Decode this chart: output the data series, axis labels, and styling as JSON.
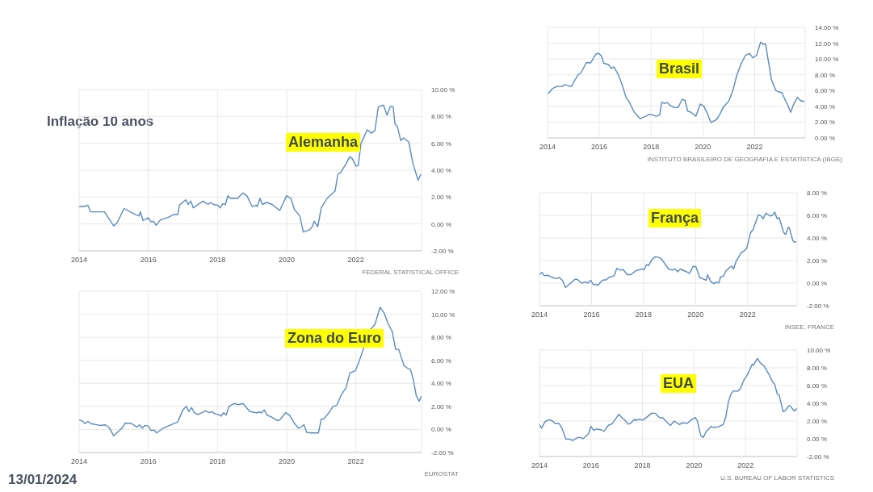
{
  "chart_data": [
    {
      "type": "other",
      "title": "Inflação 10 anos",
      "annotations": [
        "13/01/2024"
      ]
    },
    {
      "type": "line",
      "title": "Alemanha",
      "annotations": [
        "FEDERAL STATISTICAL OFFICE"
      ],
      "color": "#5a8bc0",
      "grid": true,
      "xlim": [
        2014,
        2023.9
      ],
      "xticks": [
        2014,
        2016,
        2018,
        2020,
        2022
      ],
      "ylim": [
        -2,
        10
      ],
      "yticks": [
        {
          "value": -2,
          "label": "-2.00 %"
        },
        {
          "value": 0,
          "label": "0.00 %"
        },
        {
          "value": 2,
          "label": "2.00 %"
        },
        {
          "value": 4,
          "label": "4.00 %"
        },
        {
          "value": 6,
          "label": "6.00 %"
        },
        {
          "value": 8,
          "label": "8.00 %"
        },
        {
          "value": 10,
          "label": "10.00 %"
        }
      ],
      "x": [
        2014.0,
        2014.15,
        2014.25,
        2014.33,
        2014.73,
        2015.0,
        2015.1,
        2015.3,
        2015.58,
        2015.73,
        2015.77,
        2015.85,
        2016.0,
        2016.08,
        2016.15,
        2016.23,
        2016.35,
        2016.58,
        2016.73,
        2016.85,
        2016.9,
        2017.08,
        2017.15,
        2017.23,
        2017.3,
        2017.58,
        2017.73,
        2017.8,
        2017.88,
        2018.0,
        2018.08,
        2018.15,
        2018.23,
        2018.3,
        2018.38,
        2018.58,
        2018.73,
        2018.85,
        2019.0,
        2019.12,
        2019.15,
        2019.23,
        2019.3,
        2019.42,
        2019.58,
        2019.8,
        2020.0,
        2020.12,
        2020.23,
        2020.38,
        2020.48,
        2020.65,
        2020.73,
        2020.8,
        2020.9,
        2021.0,
        2021.17,
        2021.4,
        2021.48,
        2021.55,
        2021.7,
        2021.82,
        2021.9,
        2022.0,
        2022.07,
        2022.15,
        2022.33,
        2022.45,
        2022.55,
        2022.65,
        2022.8,
        2022.9,
        2023.0,
        2023.08,
        2023.13,
        2023.2,
        2023.3,
        2023.38,
        2023.53,
        2023.65,
        2023.8,
        2023.88
      ],
      "values": [
        1.3,
        1.3,
        1.4,
        0.9,
        0.9,
        -0.15,
        0.1,
        1.15,
        0.75,
        0.6,
        0.9,
        0.25,
        0.45,
        0.15,
        0.2,
        -0.1,
        0.3,
        0.5,
        0.7,
        0.7,
        1.4,
        1.8,
        1.45,
        1.7,
        1.2,
        1.7,
        1.45,
        1.6,
        1.45,
        1.4,
        1.2,
        1.5,
        1.45,
        2.1,
        1.9,
        1.9,
        2.3,
        2.1,
        1.3,
        1.4,
        1.3,
        1.9,
        1.45,
        1.6,
        1.45,
        1.0,
        2.1,
        1.9,
        1.05,
        0.6,
        -0.6,
        -0.45,
        -0.25,
        0.2,
        -0.2,
        1.2,
        1.9,
        2.45,
        3.7,
        3.8,
        4.4,
        5.0,
        4.85,
        4.3,
        4.35,
        6.0,
        7.0,
        6.75,
        6.95,
        8.7,
        8.85,
        8.1,
        8.75,
        8.7,
        7.45,
        7.25,
        6.2,
        6.4,
        6.1,
        4.5,
        3.25,
        3.7
      ]
    },
    {
      "type": "line",
      "title": "Brasil",
      "annotations": [
        "INSTITUTO BRASILEIRO DE GEOGRAFIA E ESTATÍSTICA (IBGE)"
      ],
      "color": "#5a8bc0",
      "grid": true,
      "xlim": [
        2014,
        2023.95
      ],
      "xticks": [
        2014,
        2016,
        2018,
        2020,
        2022
      ],
      "ylim": [
        0,
        14
      ],
      "yticks": [
        {
          "value": 0,
          "label": "0.00 %"
        },
        {
          "value": 2,
          "label": "2.00 %"
        },
        {
          "value": 4,
          "label": "4.00 %"
        },
        {
          "value": 6,
          "label": "6.00 %"
        },
        {
          "value": 8,
          "label": "8.00 %"
        },
        {
          "value": 10,
          "label": "10.00 %"
        },
        {
          "value": 12,
          "label": "12.00 %"
        },
        {
          "value": 14,
          "label": "14.00 %"
        }
      ],
      "x": [
        2014.0,
        2014.07,
        2014.18,
        2014.39,
        2014.55,
        2014.66,
        2014.92,
        2015.03,
        2015.19,
        2015.29,
        2015.5,
        2015.66,
        2015.87,
        2015.98,
        2016.08,
        2016.17,
        2016.35,
        2016.46,
        2016.56,
        2016.72,
        2016.88,
        2017.04,
        2017.14,
        2017.35,
        2017.57,
        2017.83,
        2017.94,
        2018.1,
        2018.2,
        2018.33,
        2018.41,
        2018.52,
        2018.62,
        2018.72,
        2018.89,
        2019.04,
        2019.2,
        2019.31,
        2019.41,
        2019.54,
        2019.73,
        2019.9,
        2020.04,
        2020.18,
        2020.31,
        2020.52,
        2020.63,
        2020.79,
        2021.0,
        2021.16,
        2021.32,
        2021.48,
        2021.64,
        2021.8,
        2021.93,
        2022.07,
        2022.23,
        2022.33,
        2022.42,
        2022.65,
        2022.81,
        2022.91,
        2023.05,
        2023.2,
        2023.28,
        2023.39,
        2023.49,
        2023.65,
        2023.76,
        2023.92
      ],
      "values": [
        5.65,
        5.75,
        6.25,
        6.55,
        6.5,
        6.75,
        6.5,
        7.15,
        8.05,
        8.25,
        9.55,
        9.5,
        10.65,
        10.7,
        10.4,
        9.45,
        9.3,
        8.8,
        9.0,
        8.1,
        6.75,
        5.05,
        4.65,
        3.25,
        2.45,
        2.8,
        3.0,
        2.85,
        2.75,
        2.9,
        4.5,
        4.35,
        4.5,
        4.15,
        3.85,
        3.85,
        4.9,
        4.75,
        3.4,
        3.25,
        2.75,
        4.3,
        4.0,
        3.05,
        1.95,
        2.3,
        2.85,
        3.9,
        4.65,
        6.05,
        8.05,
        9.4,
        10.45,
        10.7,
        10.15,
        10.45,
        12.15,
        11.85,
        11.9,
        7.35,
        6.05,
        5.85,
        5.75,
        4.65,
        4.15,
        3.25,
        4.15,
        5.15,
        4.75,
        4.6
      ]
    },
    {
      "type": "line",
      "title": "França",
      "annotations": [
        "INSEE, FRANCE"
      ],
      "color": "#5a8bc0",
      "grid": true,
      "xlim": [
        2014,
        2023.9
      ],
      "xticks": [
        2014,
        2016,
        2018,
        2020,
        2022
      ],
      "ylim": [
        -2,
        8
      ],
      "yticks": [
        {
          "value": -2,
          "label": "-2.00 %"
        },
        {
          "value": 0,
          "label": "0.00 %"
        },
        {
          "value": 2,
          "label": "2.00 %"
        },
        {
          "value": 4,
          "label": "4.00 %"
        },
        {
          "value": 6,
          "label": "6.00 %"
        },
        {
          "value": 8,
          "label": "8.00 %"
        }
      ],
      "x": [
        2014.0,
        2014.1,
        2014.18,
        2014.33,
        2014.48,
        2014.68,
        2014.76,
        2014.88,
        2015.0,
        2015.17,
        2015.37,
        2015.47,
        2015.62,
        2015.77,
        2015.87,
        2015.97,
        2016.07,
        2016.17,
        2016.24,
        2016.42,
        2016.57,
        2016.67,
        2016.87,
        2016.97,
        2017.1,
        2017.22,
        2017.37,
        2017.51,
        2017.71,
        2017.96,
        2018.03,
        2018.11,
        2018.19,
        2018.31,
        2018.46,
        2018.66,
        2018.76,
        2018.96,
        2019.11,
        2019.21,
        2019.31,
        2019.41,
        2019.66,
        2019.76,
        2019.91,
        2020.01,
        2020.16,
        2020.31,
        2020.41,
        2020.46,
        2020.59,
        2020.71,
        2020.81,
        2020.89,
        2020.96,
        2021.06,
        2021.16,
        2021.31,
        2021.39,
        2021.46,
        2021.56,
        2021.76,
        2021.86,
        2021.96,
        2022.11,
        2022.21,
        2022.41,
        2022.51,
        2022.59,
        2022.71,
        2022.86,
        2022.96,
        2023.04,
        2023.13,
        2023.21,
        2023.38,
        2023.46,
        2023.56,
        2023.6,
        2023.73,
        2023.8,
        2023.86
      ],
      "values": [
        0.75,
        0.95,
        0.65,
        0.7,
        0.5,
        0.4,
        0.5,
        0.25,
        -0.4,
        -0.05,
        0.35,
        0.3,
        0.0,
        0.1,
        0.0,
        0.25,
        -0.15,
        -0.1,
        -0.2,
        0.25,
        0.3,
        0.5,
        0.65,
        1.3,
        1.15,
        1.2,
        0.75,
        0.75,
        1.1,
        1.25,
        1.2,
        1.65,
        1.55,
        2.05,
        2.35,
        2.2,
        1.9,
        1.25,
        1.15,
        1.25,
        1.0,
        1.25,
        1.0,
        0.85,
        1.5,
        1.45,
        0.5,
        0.35,
        0.25,
        0.75,
        0.1,
        -0.05,
        0.1,
        0.0,
        0.55,
        0.6,
        1.05,
        1.4,
        1.5,
        1.25,
        1.95,
        2.7,
        2.85,
        3.05,
        4.45,
        4.75,
        6.05,
        5.95,
        5.7,
        6.2,
        5.95,
        6.0,
        6.3,
        5.7,
        5.8,
        4.5,
        4.3,
        4.95,
        4.9,
        3.8,
        3.6,
        3.7
      ]
    },
    {
      "type": "line",
      "title": "Zona do Euro",
      "annotations": [
        "EUROSTAT"
      ],
      "color": "#5a8bc0",
      "grid": true,
      "xlim": [
        2014,
        2023.9
      ],
      "xticks": [
        2014,
        2016,
        2018,
        2020,
        2022
      ],
      "ylim": [
        -2,
        12
      ],
      "yticks": [
        {
          "value": -2,
          "label": "-2.00 %"
        },
        {
          "value": 0,
          "label": "0.00 %"
        },
        {
          "value": 2,
          "label": "2.00 %"
        },
        {
          "value": 4,
          "label": "4.00 %"
        },
        {
          "value": 6,
          "label": "6.00 %"
        },
        {
          "value": 8,
          "label": "8.00 %"
        },
        {
          "value": 10,
          "label": "10.00 %"
        },
        {
          "value": 12,
          "label": "12.00 %"
        }
      ],
      "x": [
        2014.0,
        2014.11,
        2014.17,
        2014.25,
        2014.34,
        2014.6,
        2014.76,
        2014.87,
        2015.0,
        2015.25,
        2015.33,
        2015.52,
        2015.67,
        2015.75,
        2015.83,
        2015.9,
        2016.0,
        2016.08,
        2016.17,
        2016.24,
        2016.4,
        2016.5,
        2016.62,
        2016.77,
        2016.85,
        2017.0,
        2017.1,
        2017.17,
        2017.25,
        2017.33,
        2017.43,
        2017.66,
        2017.77,
        2017.84,
        2017.92,
        2018.03,
        2018.1,
        2018.18,
        2018.25,
        2018.33,
        2018.48,
        2018.6,
        2018.73,
        2018.94,
        2019.13,
        2019.2,
        2019.28,
        2019.35,
        2019.43,
        2019.54,
        2019.74,
        2019.81,
        2019.97,
        2020.08,
        2020.23,
        2020.35,
        2020.5,
        2020.58,
        2020.69,
        2020.92,
        2021.0,
        2021.07,
        2021.22,
        2021.34,
        2021.45,
        2021.57,
        2021.72,
        2021.83,
        2021.99,
        2022.1,
        2022.4,
        2022.55,
        2022.7,
        2022.82,
        2022.93,
        2023.05,
        2023.15,
        2023.24,
        2023.39,
        2023.5,
        2023.58,
        2023.66,
        2023.75,
        2023.83,
        2023.9
      ],
      "values": [
        0.85,
        0.7,
        0.5,
        0.7,
        0.5,
        0.35,
        0.4,
        0.15,
        -0.55,
        0.15,
        0.55,
        0.5,
        0.2,
        0.4,
        0.1,
        0.35,
        0.3,
        -0.1,
        -0.05,
        -0.3,
        0.05,
        0.2,
        0.35,
        0.55,
        0.65,
        1.7,
        2.0,
        1.55,
        1.9,
        1.45,
        1.3,
        1.6,
        1.45,
        1.55,
        1.35,
        1.3,
        1.15,
        1.45,
        1.25,
        2.0,
        2.25,
        2.15,
        2.25,
        1.55,
        1.45,
        1.5,
        1.45,
        1.7,
        1.25,
        1.1,
        0.75,
        0.85,
        1.45,
        1.25,
        0.5,
        0.1,
        0.4,
        -0.25,
        -0.3,
        -0.3,
        0.9,
        0.9,
        1.45,
        2.0,
        2.1,
        2.95,
        3.65,
        4.9,
        5.1,
        5.95,
        8.6,
        9.1,
        10.6,
        10.1,
        9.2,
        8.5,
        6.95,
        6.95,
        5.55,
        5.3,
        5.2,
        4.35,
        2.9,
        2.45,
        2.9
      ]
    },
    {
      "type": "line",
      "title": "EUA",
      "annotations": [
        "U.S. BUREAU OF LABOR STATISTICS"
      ],
      "color": "#5a8bc0",
      "grid": true,
      "xlim": [
        2014,
        2024
      ],
      "xticks": [
        2014,
        2016,
        2018,
        2020,
        2022
      ],
      "ylim": [
        -2,
        10
      ],
      "yticks": [
        {
          "value": -2,
          "label": "-2.00 %"
        },
        {
          "value": 0,
          "label": "0.00 %"
        },
        {
          "value": 2,
          "label": "2.00 %"
        },
        {
          "value": 4,
          "label": "4.00 %"
        },
        {
          "value": 6,
          "label": "6.00 %"
        },
        {
          "value": 8,
          "label": "8.00 %"
        },
        {
          "value": 10,
          "label": "10.00 %"
        }
      ],
      "x": [
        2014.0,
        2014.08,
        2014.21,
        2014.36,
        2014.51,
        2014.62,
        2014.77,
        2014.87,
        2015.03,
        2015.18,
        2015.28,
        2015.49,
        2015.59,
        2015.69,
        2015.9,
        2016.0,
        2016.1,
        2016.21,
        2016.41,
        2016.51,
        2016.67,
        2016.82,
        2017.08,
        2017.18,
        2017.33,
        2017.44,
        2017.54,
        2017.69,
        2017.74,
        2017.85,
        2018.0,
        2018.15,
        2018.36,
        2018.51,
        2018.67,
        2018.77,
        2018.92,
        2019.08,
        2019.23,
        2019.44,
        2019.54,
        2019.74,
        2019.9,
        2020.05,
        2020.13,
        2020.26,
        2020.36,
        2020.46,
        2020.67,
        2020.77,
        2020.94,
        2021.13,
        2021.23,
        2021.33,
        2021.44,
        2021.54,
        2021.69,
        2021.79,
        2021.95,
        2022.05,
        2022.26,
        2022.31,
        2022.46,
        2022.56,
        2022.72,
        2022.92,
        2023.05,
        2023.13,
        2023.23,
        2023.3,
        2023.46,
        2023.54,
        2023.67,
        2023.74,
        2023.85,
        2023.9,
        2024.0
      ],
      "values": [
        1.6,
        1.2,
        1.9,
        2.15,
        2.0,
        1.7,
        1.7,
        1.2,
        -0.05,
        -0.05,
        -0.2,
        0.15,
        0.15,
        0.0,
        0.55,
        1.4,
        0.95,
        1.1,
        1.0,
        0.85,
        1.5,
        1.7,
        2.75,
        2.45,
        2.05,
        1.65,
        1.75,
        2.2,
        2.05,
        2.2,
        2.1,
        2.4,
        2.9,
        2.85,
        2.35,
        2.4,
        1.95,
        1.5,
        2.0,
        1.6,
        1.8,
        1.75,
        2.15,
        2.4,
        2.0,
        0.35,
        0.15,
        0.75,
        1.4,
        1.25,
        1.35,
        1.6,
        2.4,
        4.1,
        5.1,
        5.4,
        5.35,
        5.6,
        6.7,
        7.1,
        8.4,
        8.3,
        9.05,
        8.6,
        8.2,
        7.2,
        6.4,
        6.15,
        5.05,
        4.95,
        3.05,
        3.15,
        3.7,
        3.7,
        3.25,
        3.15,
        3.4
      ]
    }
  ]
}
